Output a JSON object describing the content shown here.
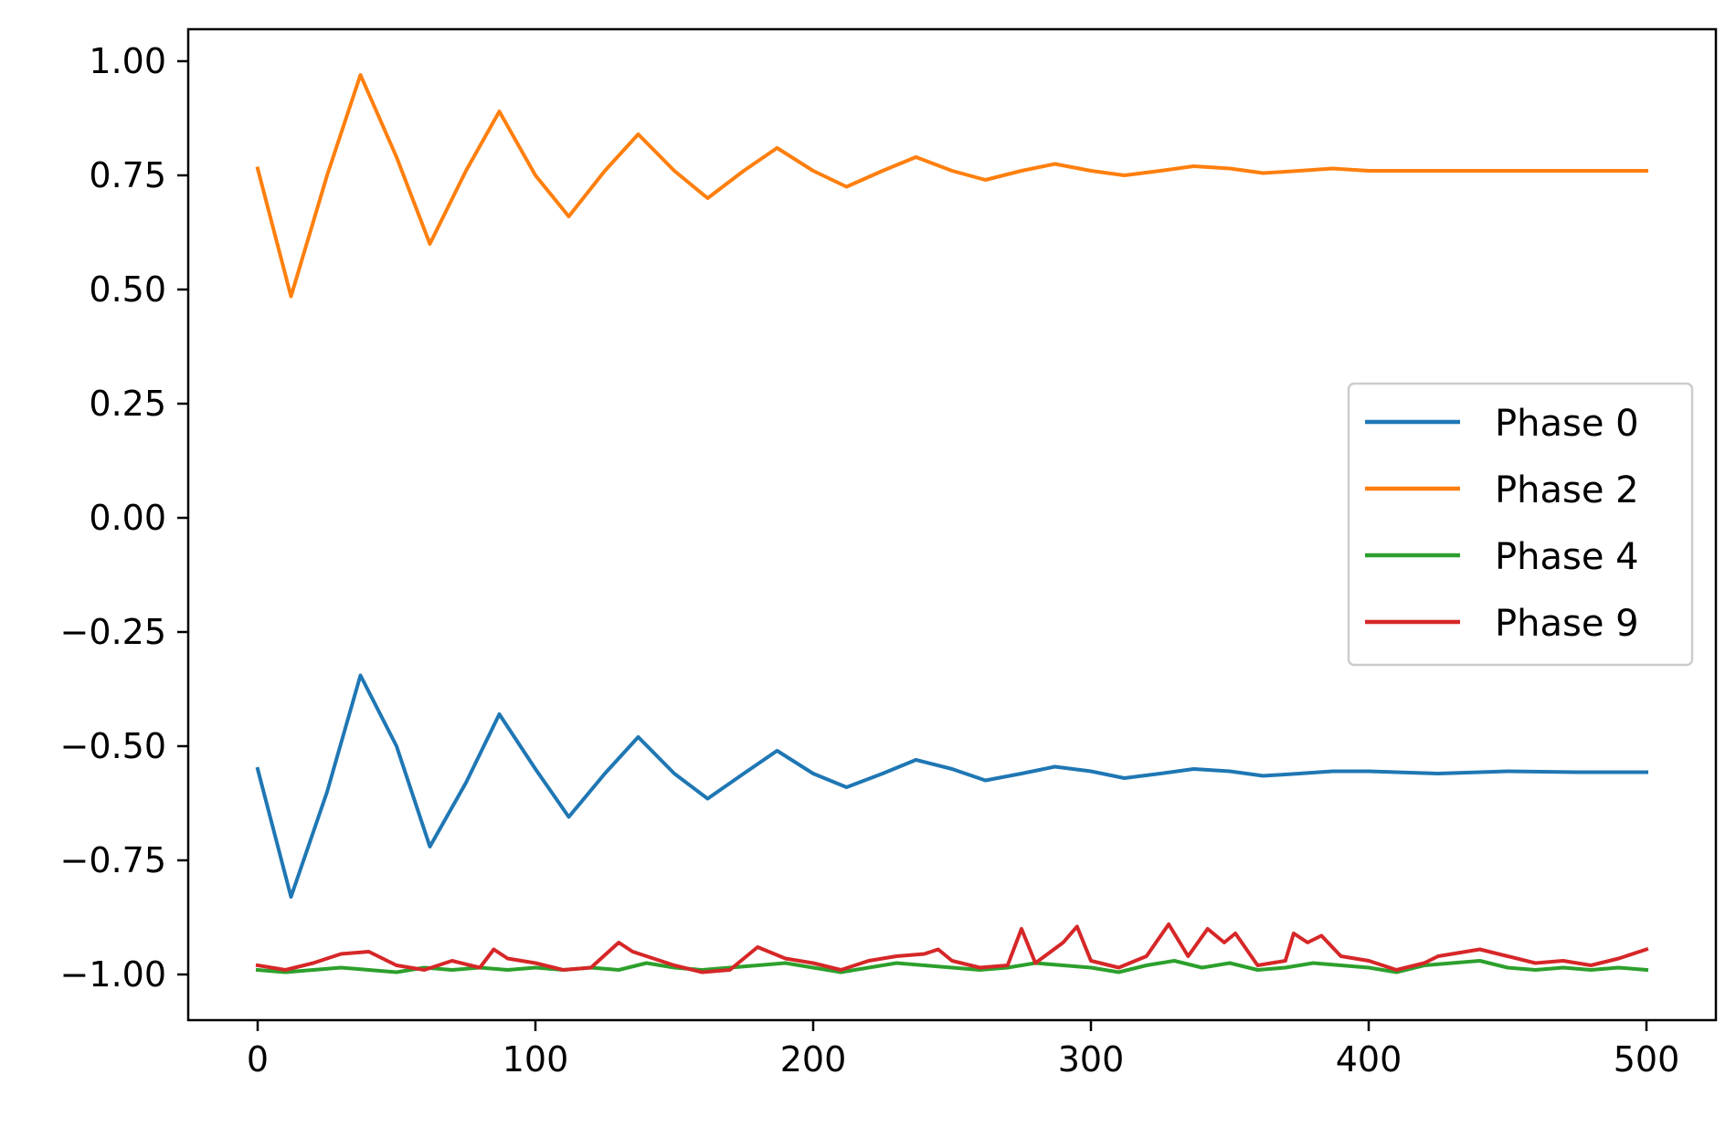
{
  "chart_data": {
    "type": "line",
    "title": "",
    "xlabel": "",
    "ylabel": "",
    "xlim": [
      -25,
      525
    ],
    "ylim": [
      -1.1,
      1.07
    ],
    "xticks": [
      0,
      100,
      200,
      300,
      400,
      500
    ],
    "xtick_labels": [
      "0",
      "100",
      "200",
      "300",
      "400",
      "500"
    ],
    "yticks": [
      1.0,
      0.75,
      0.5,
      0.25,
      0.0,
      -0.25,
      -0.5,
      -0.75,
      -1.0
    ],
    "ytick_labels": [
      "1.00",
      "0.75",
      "0.50",
      "0.25",
      "0.00",
      "−0.25",
      "−0.50",
      "−0.75",
      "−1.00"
    ],
    "grid": false,
    "legend_position": "center-right",
    "series": [
      {
        "name": "Phase 0",
        "color": "#1f77b4",
        "x": [
          0,
          12,
          25,
          37,
          50,
          62,
          75,
          87,
          100,
          112,
          125,
          137,
          150,
          162,
          175,
          187,
          200,
          212,
          225,
          237,
          250,
          262,
          275,
          287,
          300,
          312,
          325,
          337,
          350,
          362,
          375,
          387,
          400,
          425,
          450,
          475,
          500
        ],
        "y": [
          -0.55,
          -0.83,
          -0.6,
          -0.345,
          -0.5,
          -0.72,
          -0.58,
          -0.43,
          -0.55,
          -0.655,
          -0.56,
          -0.48,
          -0.56,
          -0.615,
          -0.56,
          -0.51,
          -0.56,
          -0.59,
          -0.56,
          -0.53,
          -0.55,
          -0.575,
          -0.56,
          -0.545,
          -0.555,
          -0.57,
          -0.56,
          -0.55,
          -0.555,
          -0.565,
          -0.56,
          -0.555,
          -0.555,
          -0.56,
          -0.555,
          -0.557,
          -0.557
        ]
      },
      {
        "name": "Phase 2",
        "color": "#ff7f0e",
        "x": [
          0,
          12,
          25,
          37,
          50,
          62,
          75,
          87,
          100,
          112,
          125,
          137,
          150,
          162,
          175,
          187,
          200,
          212,
          225,
          237,
          250,
          262,
          275,
          287,
          300,
          312,
          325,
          337,
          350,
          362,
          375,
          387,
          400,
          425,
          450,
          475,
          500
        ],
        "y": [
          0.765,
          0.485,
          0.75,
          0.97,
          0.79,
          0.6,
          0.76,
          0.89,
          0.75,
          0.66,
          0.76,
          0.84,
          0.76,
          0.7,
          0.76,
          0.81,
          0.76,
          0.725,
          0.76,
          0.79,
          0.76,
          0.74,
          0.76,
          0.775,
          0.76,
          0.75,
          0.76,
          0.77,
          0.765,
          0.755,
          0.76,
          0.765,
          0.76,
          0.76,
          0.76,
          0.76,
          0.76
        ]
      },
      {
        "name": "Phase 4",
        "color": "#2ca02c",
        "x": [
          0,
          10,
          20,
          30,
          40,
          50,
          60,
          70,
          80,
          90,
          100,
          110,
          120,
          130,
          140,
          150,
          160,
          170,
          180,
          190,
          200,
          210,
          220,
          230,
          240,
          250,
          260,
          270,
          280,
          290,
          300,
          310,
          320,
          330,
          340,
          350,
          360,
          370,
          380,
          390,
          400,
          410,
          420,
          430,
          440,
          450,
          460,
          470,
          480,
          490,
          500
        ],
        "y": [
          -0.99,
          -0.995,
          -0.99,
          -0.985,
          -0.99,
          -0.995,
          -0.985,
          -0.99,
          -0.985,
          -0.99,
          -0.985,
          -0.99,
          -0.985,
          -0.99,
          -0.975,
          -0.985,
          -0.99,
          -0.985,
          -0.98,
          -0.975,
          -0.985,
          -0.995,
          -0.985,
          -0.975,
          -0.98,
          -0.985,
          -0.99,
          -0.985,
          -0.975,
          -0.98,
          -0.985,
          -0.995,
          -0.98,
          -0.97,
          -0.985,
          -0.975,
          -0.99,
          -0.985,
          -0.975,
          -0.98,
          -0.985,
          -0.995,
          -0.98,
          -0.975,
          -0.97,
          -0.985,
          -0.99,
          -0.985,
          -0.99,
          -0.985,
          -0.99
        ]
      },
      {
        "name": "Phase 9",
        "color": "#d62728",
        "x": [
          0,
          10,
          20,
          30,
          40,
          50,
          60,
          70,
          80,
          85,
          90,
          100,
          110,
          120,
          130,
          135,
          140,
          150,
          160,
          170,
          180,
          190,
          200,
          210,
          220,
          230,
          240,
          245,
          250,
          260,
          270,
          275,
          280,
          290,
          295,
          300,
          310,
          320,
          328,
          335,
          342,
          348,
          352,
          360,
          370,
          373,
          378,
          383,
          390,
          400,
          410,
          420,
          425,
          430,
          440,
          450,
          460,
          470,
          480,
          490,
          500
        ],
        "y": [
          -0.98,
          -0.99,
          -0.975,
          -0.955,
          -0.95,
          -0.98,
          -0.99,
          -0.97,
          -0.985,
          -0.945,
          -0.965,
          -0.975,
          -0.99,
          -0.985,
          -0.93,
          -0.95,
          -0.96,
          -0.98,
          -0.995,
          -0.99,
          -0.94,
          -0.965,
          -0.975,
          -0.99,
          -0.97,
          -0.96,
          -0.955,
          -0.945,
          -0.97,
          -0.985,
          -0.98,
          -0.9,
          -0.975,
          -0.93,
          -0.895,
          -0.97,
          -0.985,
          -0.96,
          -0.89,
          -0.96,
          -0.9,
          -0.93,
          -0.91,
          -0.98,
          -0.97,
          -0.91,
          -0.93,
          -0.915,
          -0.96,
          -0.97,
          -0.99,
          -0.975,
          -0.96,
          -0.955,
          -0.945,
          -0.96,
          -0.975,
          -0.97,
          -0.98,
          -0.965,
          -0.945
        ]
      }
    ]
  }
}
